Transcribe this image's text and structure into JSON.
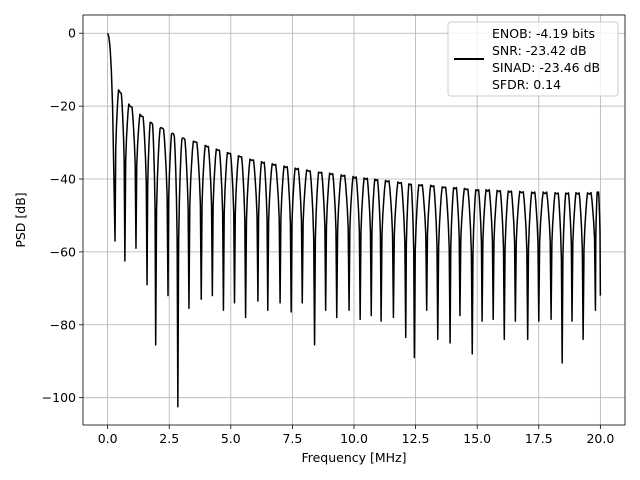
{
  "chart_data": {
    "type": "line",
    "xlabel": "Frequency [MHz]",
    "ylabel": "PSD [dB]",
    "xlim": [
      -1.0,
      21.0
    ],
    "ylim": [
      -107.5,
      5.0
    ],
    "xticks": [
      0.0,
      2.5,
      5.0,
      7.5,
      10.0,
      12.5,
      15.0,
      17.5,
      20.0
    ],
    "xtick_labels": [
      "0.0",
      "2.5",
      "5.0",
      "7.5",
      "10.0",
      "12.5",
      "15.0",
      "17.5",
      "20.0"
    ],
    "yticks": [
      0,
      -20,
      -40,
      -60,
      -80,
      -100
    ],
    "ytick_labels": [
      "0",
      "−20",
      "−40",
      "−60",
      "−80",
      "−100"
    ],
    "grid": true,
    "legend_position": "top-right",
    "legend_entries": [
      "ENOB: -4.19 bits",
      "SNR: -23.42 dB",
      "SINAD: -23.46 dB",
      "SFDR: 0.14"
    ],
    "series": [
      {
        "color": "#000000",
        "lobe_spacing_mhz": 0.45,
        "main_lobe": {
          "x": [
            0.0,
            0.05,
            0.1,
            0.15,
            0.2,
            0.25,
            0.3
          ],
          "y": [
            0.0,
            -1.0,
            -4.0,
            -10.0,
            -20.0,
            -38.0,
            -57.0
          ]
        },
        "sidelobe_peaks": [
          [
            0.45,
            -13.5
          ],
          [
            0.9,
            -17.8
          ],
          [
            1.35,
            -20.5
          ],
          [
            1.8,
            -22.5
          ],
          [
            2.25,
            -24.0
          ],
          [
            2.7,
            -25.5
          ],
          [
            3.15,
            -26.8
          ],
          [
            3.6,
            -27.8
          ],
          [
            4.05,
            -29.0
          ],
          [
            4.5,
            -30.0
          ],
          [
            5.0,
            -31.0
          ],
          [
            6.0,
            -33.0
          ],
          [
            7.5,
            -35.0
          ],
          [
            10.0,
            -37.5
          ],
          [
            12.5,
            -39.5
          ],
          [
            15.0,
            -41.0
          ],
          [
            17.5,
            -41.8
          ],
          [
            20.0,
            -42.0
          ]
        ],
        "null_depths": [
          [
            0.3,
            -57.0
          ],
          [
            0.7,
            -62.5
          ],
          [
            1.15,
            -59.0
          ],
          [
            1.6,
            -69.0
          ],
          [
            1.95,
            -85.5
          ],
          [
            2.45,
            -72.0
          ],
          [
            2.85,
            -102.5
          ],
          [
            3.3,
            -75.5
          ],
          [
            3.8,
            -73.0
          ],
          [
            4.25,
            -72.0
          ],
          [
            4.7,
            -76.0
          ],
          [
            5.15,
            -74.0
          ],
          [
            5.6,
            -78.0
          ],
          [
            6.1,
            -73.5
          ],
          [
            6.5,
            -76.0
          ],
          [
            7.0,
            -74.0
          ],
          [
            7.45,
            -76.5
          ],
          [
            7.9,
            -74.0
          ],
          [
            8.4,
            -85.5
          ],
          [
            8.85,
            -76.0
          ],
          [
            9.3,
            -78.0
          ],
          [
            9.8,
            -76.0
          ],
          [
            10.25,
            -78.5
          ],
          [
            10.7,
            -77.5
          ],
          [
            11.1,
            -79.0
          ],
          [
            11.6,
            -78.0
          ],
          [
            12.1,
            -83.5
          ],
          [
            12.45,
            -89.0
          ],
          [
            12.95,
            -76.0
          ],
          [
            13.4,
            -84.0
          ],
          [
            13.9,
            -85.0
          ],
          [
            14.3,
            -77.5
          ],
          [
            14.8,
            -88.0
          ],
          [
            15.2,
            -79.0
          ],
          [
            15.65,
            -78.5
          ],
          [
            16.1,
            -84.0
          ],
          [
            16.55,
            -79.0
          ],
          [
            17.05,
            -84.0
          ],
          [
            17.5,
            -79.0
          ],
          [
            18.0,
            -78.5
          ],
          [
            18.45,
            -90.5
          ],
          [
            18.85,
            -79.0
          ],
          [
            19.3,
            -84.0
          ],
          [
            19.8,
            -76.0
          ],
          [
            20.0,
            -72.0
          ]
        ]
      }
    ]
  }
}
